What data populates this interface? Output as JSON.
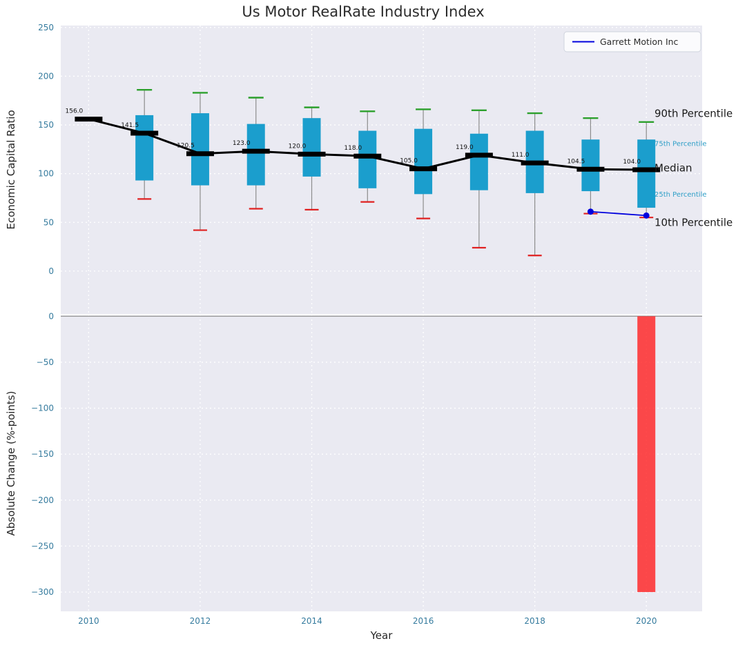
{
  "title": "Us Motor RealRate Industry Index",
  "figure": {
    "background": "#ffffff",
    "axes_background": "#eaeaf2",
    "grid_color": "#ffffff",
    "tick_color": "#357b9e",
    "label_color": "#262626"
  },
  "chart_data": [
    {
      "type": "boxplot",
      "name": "economic-capital-ratio",
      "title": "Us Motor RealRate Industry Index",
      "xlabel": "Year",
      "ylabel": "Economic Capital Ratio",
      "xlim": [
        2009.5,
        2021.0
      ],
      "ylim": [
        -44,
        252
      ],
      "xticks": [
        2010,
        2012,
        2014,
        2016,
        2018,
        2020
      ],
      "yticks": [
        0,
        50,
        100,
        150,
        200,
        250
      ],
      "grid": true,
      "box_color": "#1b9ecd",
      "p90_cap_color": "#2ca02c",
      "p10_cap_color": "#e02020",
      "whisker_color": "#8c8c8c",
      "median_color": "#000000",
      "boxes": [
        {
          "year": 2010,
          "median": 156.0,
          "q1": null,
          "q3": null,
          "p10": null,
          "p90": null,
          "label": "156.0"
        },
        {
          "year": 2011,
          "median": 141.5,
          "q1": 93,
          "q3": 160,
          "p10": 74,
          "p90": 186,
          "label": "141.5"
        },
        {
          "year": 2012,
          "median": 120.5,
          "q1": 88,
          "q3": 162,
          "p10": 42,
          "p90": 183,
          "label": "120.5"
        },
        {
          "year": 2013,
          "median": 123.0,
          "q1": 88,
          "q3": 151,
          "p10": 64,
          "p90": 178,
          "label": "123.0"
        },
        {
          "year": 2014,
          "median": 120.0,
          "q1": 97,
          "q3": 157,
          "p10": 63,
          "p90": 168,
          "label": "120.0"
        },
        {
          "year": 2015,
          "median": 118.0,
          "q1": 85,
          "q3": 144,
          "p10": 71,
          "p90": 164,
          "label": "118.0"
        },
        {
          "year": 2016,
          "median": 105.0,
          "q1": 79,
          "q3": 146,
          "p10": 54,
          "p90": 166,
          "label": "105.0"
        },
        {
          "year": 2017,
          "median": 119.0,
          "q1": 83,
          "q3": 141,
          "p10": 24,
          "p90": 165,
          "label": "119.0"
        },
        {
          "year": 2018,
          "median": 111.0,
          "q1": 80,
          "q3": 144,
          "p10": 16,
          "p90": 162,
          "label": "111.0"
        },
        {
          "year": 2019,
          "median": 104.5,
          "q1": 82,
          "q3": 135,
          "p10": 59,
          "p90": 157,
          "label": "104.5"
        },
        {
          "year": 2020,
          "median": 104.0,
          "q1": 65,
          "q3": 135,
          "p10": 55,
          "p90": 153,
          "label": "104.0"
        }
      ],
      "series": [
        {
          "name": "Garrett Motion Inc",
          "color": "#0000dd",
          "points": [
            {
              "x": 2019,
              "y": 61
            },
            {
              "x": 2020,
              "y": 57
            }
          ]
        }
      ],
      "legend": {
        "label": "Garrett Motion Inc",
        "position": "upper-right"
      },
      "annotations": [
        {
          "label": "90th Percentile",
          "value": 162,
          "size": 15,
          "color": "#1a1a1a"
        },
        {
          "label": "75th Percentile",
          "value": 131,
          "size": 10,
          "color": "#2f9fc7"
        },
        {
          "label": "Median",
          "value": 106,
          "size": 15,
          "color": "#1a1a1a"
        },
        {
          "label": "25th Percentile",
          "value": 79,
          "size": 10,
          "color": "#2f9fc7"
        },
        {
          "label": "10th Percentile",
          "value": 50,
          "size": 15,
          "color": "#1a1a1a"
        }
      ]
    },
    {
      "type": "bar",
      "name": "absolute-change",
      "ylabel": "Absolute Change (%-points)",
      "xlabel": "Year",
      "ylim": [
        -321,
        1
      ],
      "yticks": [
        0,
        -50,
        -100,
        -150,
        -200,
        -250,
        -300
      ],
      "grid": true,
      "zero_line_color": "#999999",
      "bar_color": "rgba(255,35,35,0.82)",
      "bars": [
        {
          "year": 2020,
          "value": -300
        }
      ]
    }
  ]
}
